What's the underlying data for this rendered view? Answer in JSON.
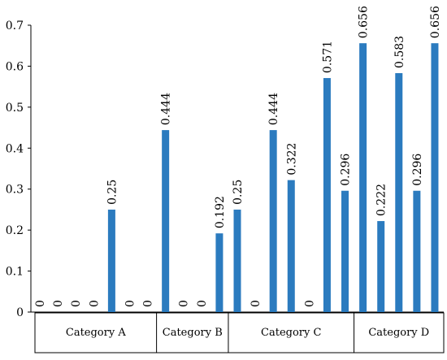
{
  "chart_data": {
    "type": "bar",
    "title": "",
    "xlabel": "",
    "ylabel": "",
    "ylim": [
      0,
      0.7
    ],
    "yticks": [
      "0",
      "0.1",
      "0.2",
      "0.3",
      "0.4",
      "0.5",
      "0.6",
      "0.7"
    ],
    "grid": false,
    "legend": "none",
    "bar_color": "#2b7bbf",
    "values": [
      0,
      0,
      0,
      0,
      0.25,
      0,
      0,
      0.444,
      0,
      0,
      0.192,
      0.25,
      0,
      0.444,
      0.322,
      0,
      0.571,
      0.296,
      0.656,
      0.222,
      0.583,
      0.296,
      0.656
    ],
    "data_labels": [
      "0",
      "0",
      "0",
      "0",
      "0.25",
      "0",
      "0",
      "0.444",
      "0",
      "0",
      "0.192",
      "0.25",
      "0",
      "0.444",
      "0.322",
      "0",
      "0.571",
      "0.296",
      "0.656",
      "0.222",
      "0.583",
      "0.296",
      "0.656"
    ],
    "groups": [
      {
        "label": "Category A",
        "count": 7
      },
      {
        "label": "Category B",
        "count": 4
      },
      {
        "label": "Category C",
        "count": 7
      },
      {
        "label": "Category D",
        "count": 5
      }
    ]
  }
}
